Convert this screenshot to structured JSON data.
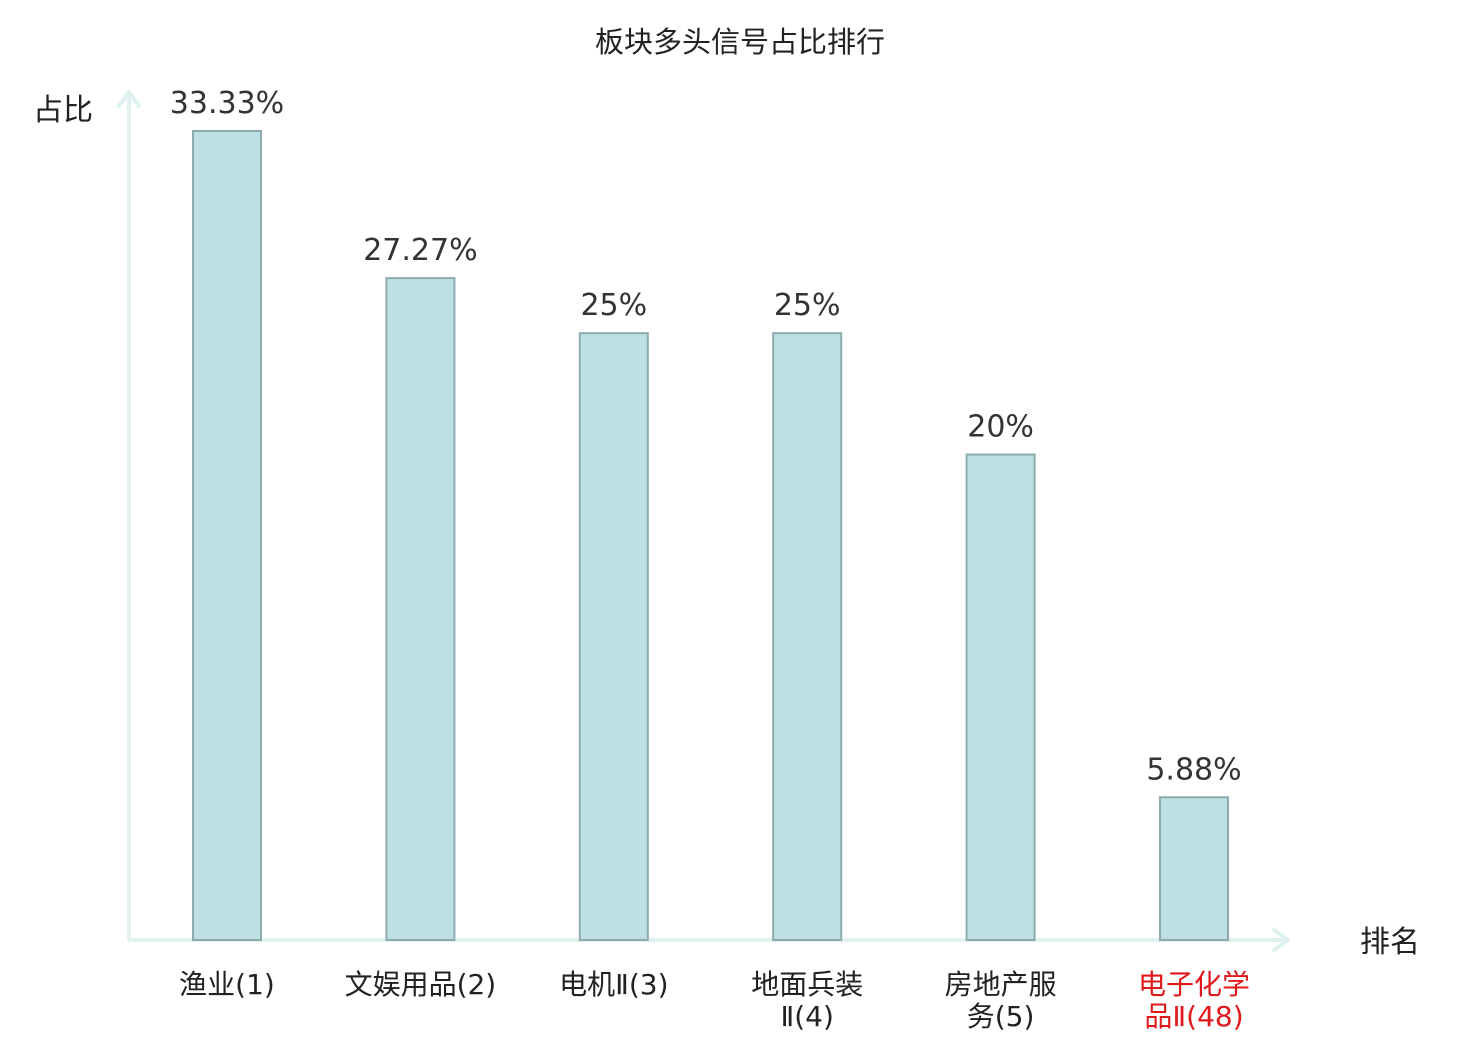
{
  "chart_data": {
    "type": "bar",
    "title": "板块多头信号占比排行",
    "ylabel": "占比",
    "xlabel": "排名",
    "categories": [
      [
        "渔业(1)"
      ],
      [
        "文娱用品(2)"
      ],
      [
        "电机Ⅱ(3)"
      ],
      [
        "地面兵装",
        "Ⅱ(4)"
      ],
      [
        "房地产服",
        "务(5)"
      ],
      [
        "电子化学",
        "品Ⅱ(48)"
      ]
    ],
    "values": [
      33.33,
      27.27,
      25,
      25,
      20,
      5.88
    ],
    "value_labels": [
      "33.33%",
      "27.27%",
      "25%",
      "25%",
      "20%",
      "5.88%"
    ],
    "highlight_index": 5,
    "ylim": [
      0,
      35
    ],
    "grid": false,
    "colors": {
      "bar_fill": "#bce0e3",
      "bar_stroke": "#8eaaaf",
      "axis": "#dff2ef",
      "highlight_text": "#e0191b"
    }
  }
}
